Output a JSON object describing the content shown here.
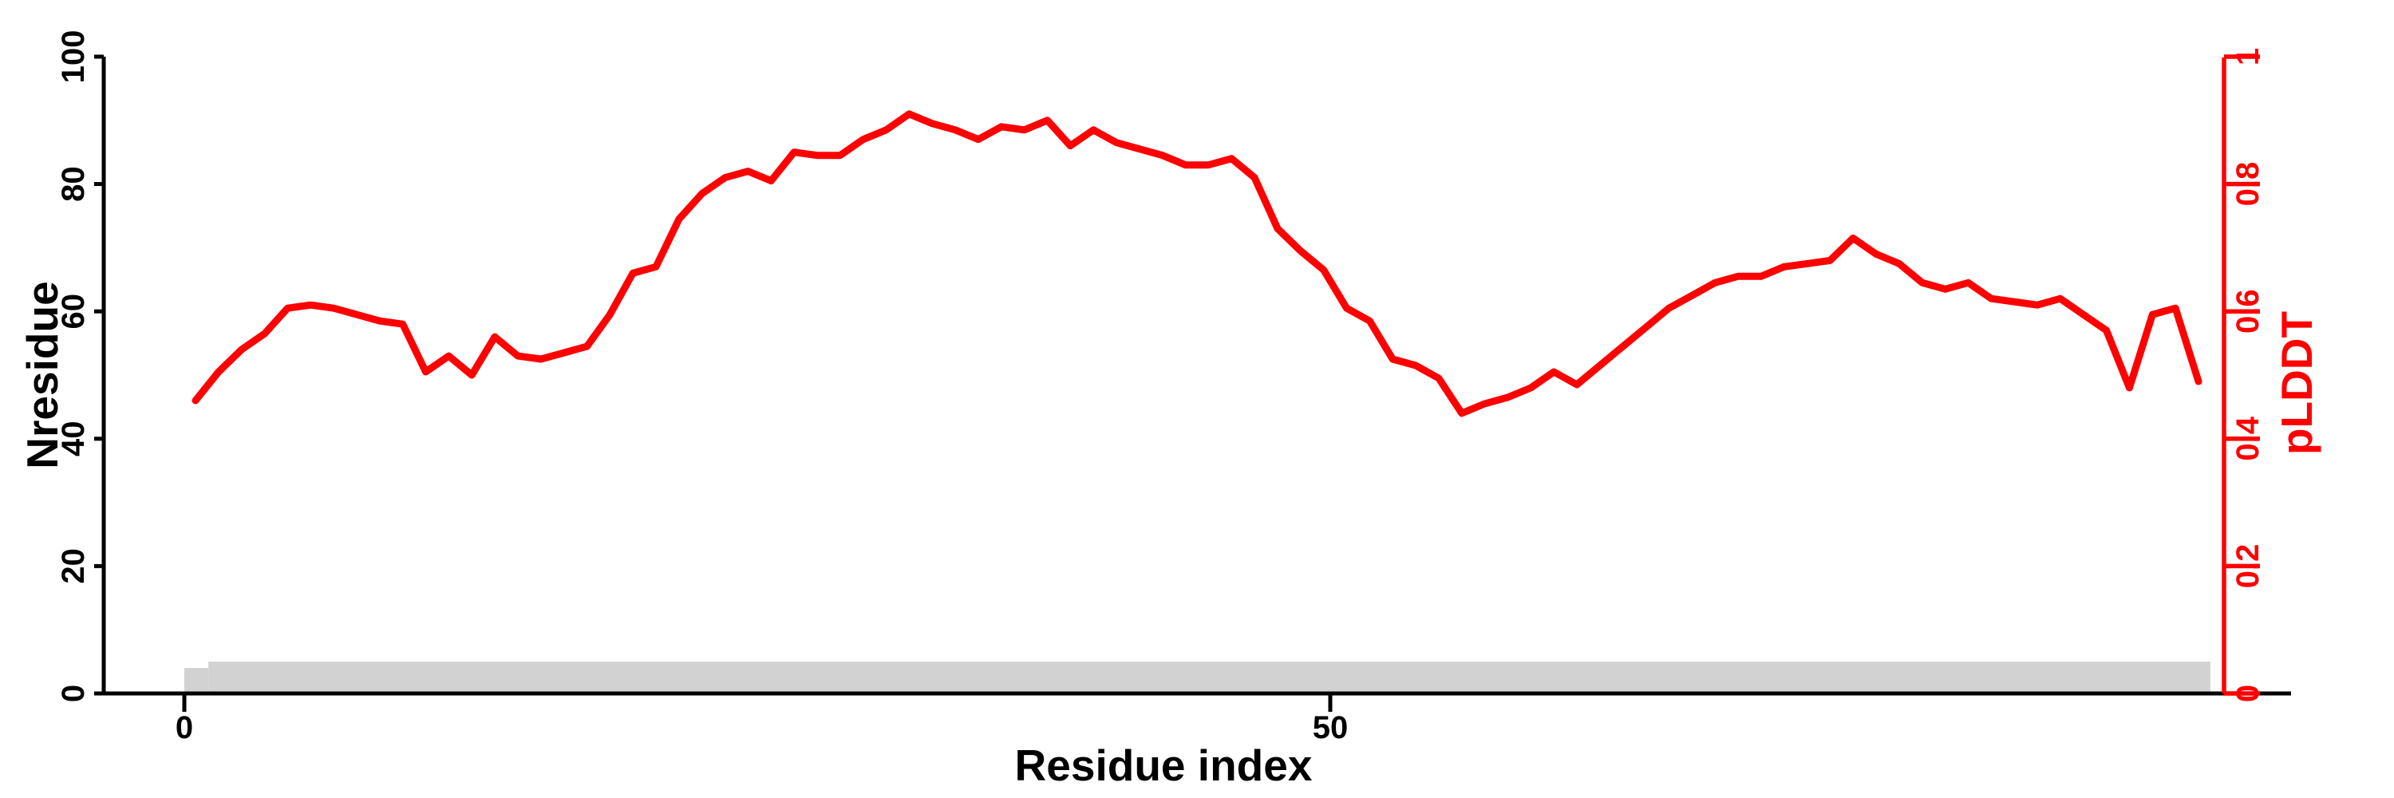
{
  "accent_color": "#ff0000",
  "bar_color": "#d2d2d2",
  "background_color": "#ffffff",
  "chart_data": {
    "type": "line",
    "title": "",
    "xlabel": "Residue index",
    "ylabel_left": "Nresidue",
    "ylabel_right": "pLDDT",
    "x_axis": {
      "tick_values": [
        0,
        50
      ],
      "tick_labels": [
        "0",
        "50"
      ],
      "visible_range": [
        0,
        92
      ]
    },
    "left_axis": {
      "label": "Nresidue",
      "tick_values": [
        0,
        20,
        40,
        60,
        80,
        100
      ],
      "tick_labels": [
        "0",
        "20",
        "40",
        "60",
        "80",
        "100"
      ],
      "range": [
        0,
        100
      ],
      "color": "#000000"
    },
    "right_axis": {
      "label": "pLDDT",
      "tick_values": [
        0,
        0.2,
        0.4,
        0.6,
        0.8,
        1
      ],
      "tick_labels": [
        "0",
        "0.2",
        "0.4",
        "0.6",
        "0.8",
        "1"
      ],
      "range": [
        0,
        1
      ],
      "color": "#ff0000"
    },
    "grid": false,
    "legend": false,
    "series": [
      {
        "name": "pLDDT",
        "type": "line",
        "color": "#ff0000",
        "x_start_residue": 1,
        "values": [
          0.46,
          0.505,
          0.54,
          0.565,
          0.605,
          0.61,
          0.605,
          0.595,
          0.585,
          0.58,
          0.505,
          0.53,
          0.5,
          0.56,
          0.53,
          0.525,
          0.535,
          0.545,
          0.595,
          0.66,
          0.67,
          0.745,
          0.785,
          0.81,
          0.82,
          0.805,
          0.85,
          0.845,
          0.845,
          0.87,
          0.885,
          0.91,
          0.895,
          0.885,
          0.87,
          0.89,
          0.885,
          0.9,
          0.86,
          0.885,
          0.865,
          0.855,
          0.845,
          0.83,
          0.83,
          0.84,
          0.81,
          0.73,
          0.695,
          0.665,
          0.605,
          0.585,
          0.525,
          0.515,
          0.495,
          0.44,
          0.455,
          0.465,
          0.48,
          0.505,
          0.485,
          0.515,
          0.545,
          0.575,
          0.605,
          0.625,
          0.645,
          0.655,
          0.655,
          0.67,
          0.675,
          0.68,
          0.715,
          0.69,
          0.675,
          0.645,
          0.635,
          0.645,
          0.62,
          0.615,
          0.61,
          0.62,
          0.595,
          0.57,
          0.48,
          0.595,
          0.605,
          0.49
        ]
      },
      {
        "name": "Nresidue",
        "type": "bar",
        "color": "#d2d2d2",
        "segments": [
          {
            "from_residue": 0,
            "to_residue": 1.05,
            "height": 4
          },
          {
            "from_residue": 1.05,
            "to_residue": 88.4,
            "height": 5
          }
        ]
      }
    ]
  }
}
